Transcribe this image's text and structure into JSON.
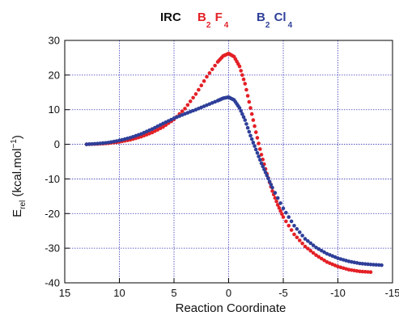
{
  "chart_data": {
    "type": "scatter",
    "legend": {
      "title": "IRC",
      "entries": [
        {
          "main1": "B",
          "sub1": "2",
          "main2": "F",
          "sub2": "4",
          "color": "#e32026"
        },
        {
          "main1": "B",
          "sub1": "2",
          "main2": "Cl",
          "sub2": "4",
          "color": "#2e3f99"
        }
      ]
    },
    "xlabel": "Reaction Coordinate",
    "ylabel": {
      "main": "E",
      "sub": "rel",
      "unit_open": " (kcal.mol",
      "unit_sup": "−1",
      "unit_close": ")"
    },
    "xlim": [
      15,
      -15
    ],
    "ylim": [
      -40,
      30
    ],
    "xticks": [
      15,
      10,
      5,
      0,
      -5,
      -10,
      -15
    ],
    "xtick_labels": [
      "15",
      "10",
      "5",
      "0",
      "-5",
      "-10",
      "-15"
    ],
    "yticks": [
      30,
      20,
      10,
      0,
      -10,
      -20,
      -30,
      -40
    ],
    "ytick_labels": [
      "30",
      "20",
      "10",
      "0",
      "-10",
      "-20",
      "-30",
      "-40"
    ],
    "grid": true,
    "series": [
      {
        "name": "B2F4",
        "color": "#e32026",
        "points": [
          [
            13,
            0
          ],
          [
            12,
            0.1
          ],
          [
            11,
            0.3
          ],
          [
            10,
            0.7
          ],
          [
            9,
            1.3
          ],
          [
            8,
            2.2
          ],
          [
            7,
            3.4
          ],
          [
            6,
            5
          ],
          [
            5,
            7.2
          ],
          [
            4,
            10.3
          ],
          [
            3,
            14.5
          ],
          [
            2,
            19.5
          ],
          [
            1,
            23.8
          ],
          [
            0.5,
            25.5
          ],
          [
            0,
            26.2
          ],
          [
            -0.5,
            25.3
          ],
          [
            -1,
            22.5
          ],
          [
            -1.5,
            17.5
          ],
          [
            -2,
            10.5
          ],
          [
            -2.5,
            3.5
          ],
          [
            -3,
            -3
          ],
          [
            -3.5,
            -8.5
          ],
          [
            -4,
            -13.5
          ],
          [
            -4.5,
            -17.5
          ],
          [
            -5,
            -21
          ],
          [
            -6,
            -26
          ],
          [
            -7,
            -29.5
          ],
          [
            -8,
            -32
          ],
          [
            -9,
            -34
          ],
          [
            -10,
            -35.3
          ],
          [
            -11,
            -36.2
          ],
          [
            -12,
            -36.7
          ],
          [
            -13,
            -36.9
          ]
        ]
      },
      {
        "name": "B2Cl4",
        "color": "#2e3f99",
        "points": [
          [
            13,
            0
          ],
          [
            12,
            0.2
          ],
          [
            11,
            0.5
          ],
          [
            10,
            1.1
          ],
          [
            9,
            1.9
          ],
          [
            8,
            3
          ],
          [
            7,
            4.4
          ],
          [
            6,
            6
          ],
          [
            5,
            7.5
          ],
          [
            4,
            8.8
          ],
          [
            3,
            10
          ],
          [
            2,
            11.3
          ],
          [
            1,
            12.6
          ],
          [
            0.5,
            13.3
          ],
          [
            0,
            13.6
          ],
          [
            -0.5,
            12.8
          ],
          [
            -1,
            10.5
          ],
          [
            -1.5,
            7
          ],
          [
            -2,
            2.5
          ],
          [
            -2.5,
            -1.5
          ],
          [
            -3,
            -5.5
          ],
          [
            -3.5,
            -9
          ],
          [
            -4,
            -12.5
          ],
          [
            -5,
            -18.5
          ],
          [
            -6,
            -23.5
          ],
          [
            -7,
            -27.3
          ],
          [
            -8,
            -29.8
          ],
          [
            -9,
            -31.6
          ],
          [
            -10,
            -32.9
          ],
          [
            -11,
            -33.8
          ],
          [
            -12,
            -34.4
          ],
          [
            -13,
            -34.7
          ],
          [
            -14,
            -34.9
          ]
        ]
      }
    ]
  }
}
